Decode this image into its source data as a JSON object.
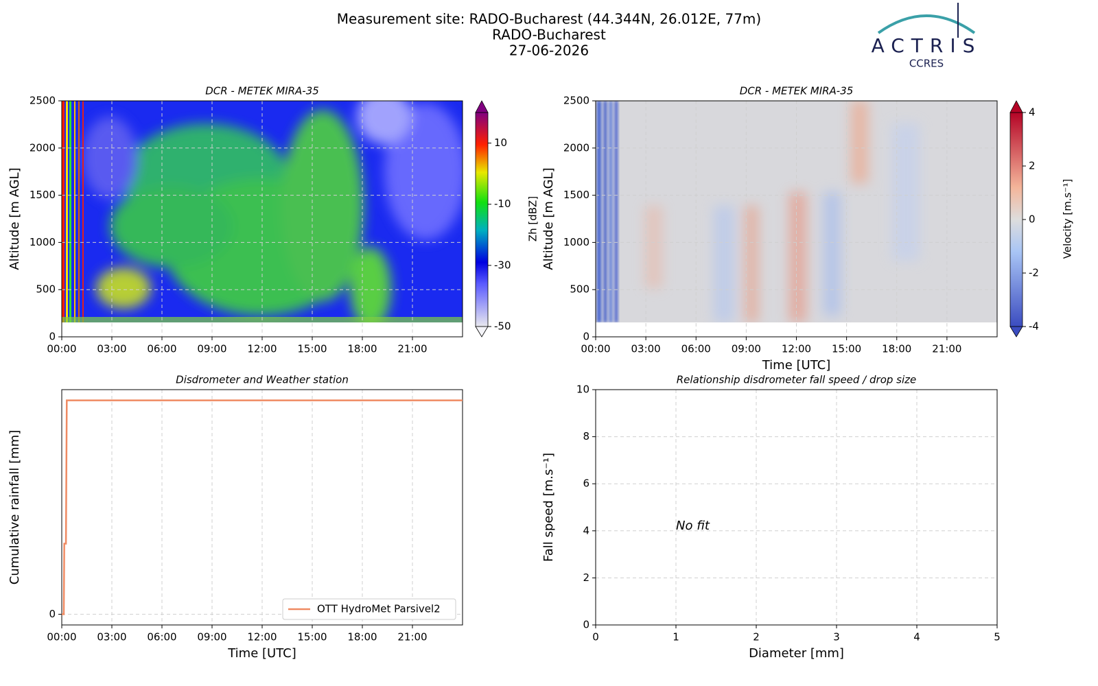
{
  "header": {
    "lines": [
      "Measurement site: RADO-Bucharest (44.344N, 26.012E, 77m)",
      "RADO-Bucharest",
      "27-06-2026"
    ]
  },
  "logo": {
    "name": "ACTRIS",
    "sub": "CCRES"
  },
  "chart_data": [
    {
      "type": "heatmap",
      "title": "DCR - METEK MIRA-35",
      "ylabel": "Altitude [m AGL]",
      "xlim": [
        0,
        24
      ],
      "xticks": [
        {
          "value": 0,
          "label": "00:00"
        },
        {
          "value": 3,
          "label": "03:00"
        },
        {
          "value": 6,
          "label": "06:00"
        },
        {
          "value": 9,
          "label": "09:00"
        },
        {
          "value": 12,
          "label": "12:00"
        },
        {
          "value": 15,
          "label": "15:00"
        },
        {
          "value": 18,
          "label": "18:00"
        },
        {
          "value": 21,
          "label": "21:00"
        }
      ],
      "ylim": [
        0,
        2500
      ],
      "yticks": [
        0,
        500,
        1000,
        1500,
        2000,
        2500
      ],
      "grid": true,
      "colorbar": {
        "label": "Zh [dBZ]",
        "clim": [
          -50,
          20
        ],
        "ticks": [
          -50,
          -30,
          -10,
          10
        ],
        "colormap": "jet"
      }
    },
    {
      "type": "heatmap",
      "title": "DCR - METEK MIRA-35",
      "ylabel": "Altitude [m AGL]",
      "xlabel": "Time [UTC]",
      "xlim": [
        0,
        24
      ],
      "xticks": [
        {
          "value": 0,
          "label": "00:00"
        },
        {
          "value": 3,
          "label": "03:00"
        },
        {
          "value": 6,
          "label": "06:00"
        },
        {
          "value": 9,
          "label": "09:00"
        },
        {
          "value": 12,
          "label": "12:00"
        },
        {
          "value": 15,
          "label": "15:00"
        },
        {
          "value": 18,
          "label": "18:00"
        },
        {
          "value": 21,
          "label": "21:00"
        }
      ],
      "ylim": [
        0,
        2500
      ],
      "yticks": [
        0,
        500,
        1000,
        1500,
        2000,
        2500
      ],
      "grid": true,
      "colorbar": {
        "label": "Velocity [m.s⁻¹]",
        "clim": [
          -4,
          4
        ],
        "ticks": [
          -4,
          -2,
          0,
          2,
          4
        ],
        "colormap": "coolwarm"
      }
    },
    {
      "type": "line",
      "title": "Disdrometer and Weather station",
      "ylabel": "Cumulative rainfall [mm]",
      "xlabel": "Time [UTC]",
      "xlim": [
        0,
        24
      ],
      "xticks": [
        {
          "value": 0,
          "label": "00:00"
        },
        {
          "value": 3,
          "label": "03:00"
        },
        {
          "value": 6,
          "label": "06:00"
        },
        {
          "value": 9,
          "label": "09:00"
        },
        {
          "value": 12,
          "label": "12:00"
        },
        {
          "value": 15,
          "label": "15:00"
        },
        {
          "value": 18,
          "label": "18:00"
        },
        {
          "value": 21,
          "label": "21:00"
        }
      ],
      "ylim": [
        -0.05,
        1.05
      ],
      "yticks": [
        0
      ],
      "grid": true,
      "legend": "lower right",
      "x": [
        0,
        0.12,
        0.15,
        0.25,
        0.3,
        24
      ],
      "series": [
        {
          "name": "OTT HydroMet Parsivel2",
          "color": "#ef8a62",
          "values": [
            0,
            0,
            0.33,
            0.33,
            1.0,
            1.0
          ]
        }
      ]
    },
    {
      "type": "scatter",
      "title": "Relationship disdrometer fall speed / drop size",
      "ylabel": "Fall speed [m.s⁻¹]",
      "xlabel": "Diameter [mm]",
      "xlim": [
        0,
        5
      ],
      "xticks": [
        0,
        1,
        2,
        3,
        4,
        5
      ],
      "ylim": [
        0,
        10
      ],
      "yticks": [
        0,
        2,
        4,
        6,
        8,
        10
      ],
      "grid": true,
      "annotation": "No fit"
    }
  ]
}
